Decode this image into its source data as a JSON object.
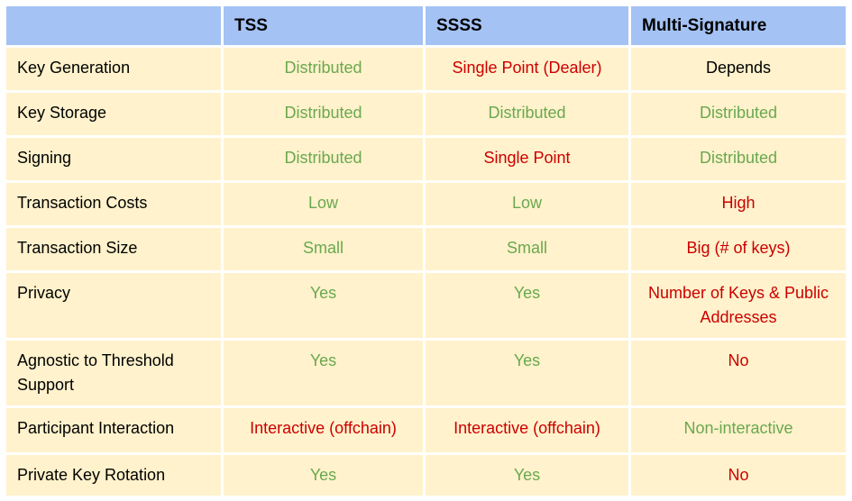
{
  "colors": {
    "header_bg": "#a4c2f4",
    "body_bg": "#fff2cc",
    "gutter": "#ffffff",
    "positive_text": "#6aa84f",
    "negative_text": "#cc0000",
    "neutral_text": "#000000"
  },
  "table": {
    "columns": [
      "",
      "TSS",
      "SSSS",
      "Multi-Signature"
    ],
    "rows": [
      {
        "label": "Key Generation",
        "cells": [
          {
            "text": "Distributed",
            "color": "green"
          },
          {
            "text": "Single Point (Dealer)",
            "color": "red"
          },
          {
            "text": "Depends",
            "color": "black"
          }
        ]
      },
      {
        "label": "Key Storage",
        "cells": [
          {
            "text": "Distributed",
            "color": "green"
          },
          {
            "text": "Distributed",
            "color": "green"
          },
          {
            "text": "Distributed",
            "color": "green"
          }
        ]
      },
      {
        "label": "Signing",
        "cells": [
          {
            "text": "Distributed",
            "color": "green"
          },
          {
            "text": "Single Point",
            "color": "red"
          },
          {
            "text": "Distributed",
            "color": "green"
          }
        ]
      },
      {
        "label": "Transaction Costs",
        "cells": [
          {
            "text": "Low",
            "color": "green"
          },
          {
            "text": "Low",
            "color": "green"
          },
          {
            "text": "High",
            "color": "red"
          }
        ]
      },
      {
        "label": "Transaction Size",
        "cells": [
          {
            "text": "Small",
            "color": "green"
          },
          {
            "text": "Small",
            "color": "green"
          },
          {
            "text": "Big (# of keys)",
            "color": "red"
          }
        ]
      },
      {
        "label": "Privacy",
        "cells": [
          {
            "text": "Yes",
            "color": "green"
          },
          {
            "text": "Yes",
            "color": "green"
          },
          {
            "text": "Number of Keys & Public Addresses",
            "color": "red"
          }
        ]
      },
      {
        "label": "Agnostic to Threshold Support",
        "cells": [
          {
            "text": "Yes",
            "color": "green"
          },
          {
            "text": "Yes",
            "color": "green"
          },
          {
            "text": "No",
            "color": "red"
          }
        ]
      },
      {
        "label": "Participant Interaction",
        "cells": [
          {
            "text": "Interactive (offchain)",
            "color": "red"
          },
          {
            "text": "Interactive (offchain)",
            "color": "red"
          },
          {
            "text": "Non-interactive",
            "color": "green"
          }
        ]
      },
      {
        "label": "Private Key Rotation",
        "cells": [
          {
            "text": "Yes",
            "color": "green"
          },
          {
            "text": "Yes",
            "color": "green"
          },
          {
            "text": "No",
            "color": "red"
          }
        ]
      }
    ]
  }
}
